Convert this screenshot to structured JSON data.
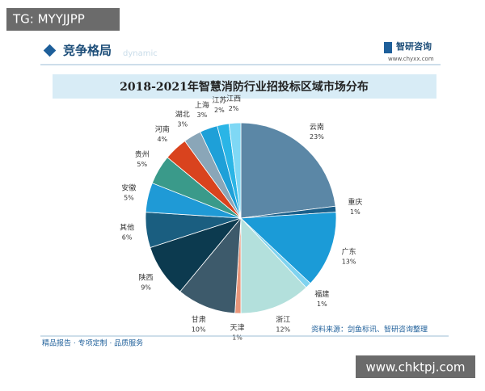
{
  "header": {
    "tag": "TG: MYYJJPP",
    "section": "竞争格局",
    "section_en": "dynamic",
    "brand": "智研咨询",
    "url": "www.chyxx.com"
  },
  "chart_data": {
    "type": "pie",
    "title": "2018-2021年智慧消防行业招投标区域市场分布",
    "categories": [
      "云南",
      "重庆",
      "广东",
      "福建",
      "浙江",
      "天津",
      "甘肃",
      "陕西",
      "其他",
      "安徽",
      "贵州",
      "河南",
      "湖北",
      "上海",
      "江苏",
      "江西"
    ],
    "values": [
      23,
      1,
      13,
      1,
      12,
      1,
      10,
      9,
      6,
      5,
      5,
      4,
      3,
      3,
      2,
      2
    ],
    "value_labels": [
      "23%",
      "1%",
      "13%",
      "1%",
      "12%",
      "1%",
      "10%",
      "9%",
      "6%",
      "5%",
      "5%",
      "4%",
      "3%",
      "3%",
      "2%",
      "2%"
    ],
    "colors": [
      "#5b87a6",
      "#1a5f8a",
      "#1b9bd7",
      "#7fd3f0",
      "#b3e0dc",
      "#e8967a",
      "#3d5a6b",
      "#0c3a4f",
      "#1a5e80",
      "#1f9ad6",
      "#3a9a8a",
      "#d9431e",
      "#8aa6b8",
      "#1ea0d8",
      "#2ab5e6",
      "#7fd8f5"
    ]
  },
  "footer": {
    "slogan": "精品报告 · 专项定制 · 品质服务",
    "source": "资料来源：剑鱼标讯、智研咨询整理",
    "watermark": "www.chktpj.com"
  }
}
